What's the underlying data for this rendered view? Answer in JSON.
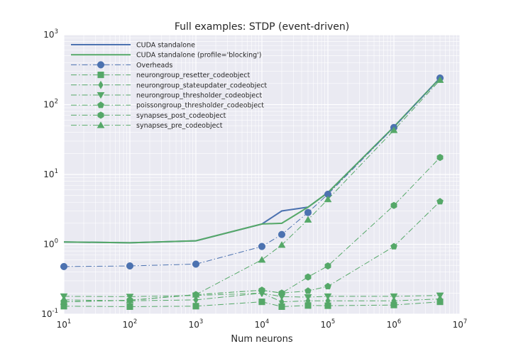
{
  "chart_data": {
    "type": "line",
    "title": "Full examples: STDP (event-driven)",
    "xlabel": "Num neurons",
    "ylabel": "",
    "xscale": "log",
    "yscale": "log",
    "xlim": [
      10,
      10000000
    ],
    "ylim": [
      0.1,
      1000
    ],
    "grid": true,
    "legend_position": "top-left",
    "x_ticks": [
      {
        "base": "10",
        "exp": "1"
      },
      {
        "base": "10",
        "exp": "2"
      },
      {
        "base": "10",
        "exp": "3"
      },
      {
        "base": "10",
        "exp": "4"
      },
      {
        "base": "10",
        "exp": "5"
      },
      {
        "base": "10",
        "exp": "6"
      },
      {
        "base": "10",
        "exp": "7"
      }
    ],
    "y_ticks": [
      {
        "base": "10",
        "exp": "-1"
      },
      {
        "base": "10",
        "exp": "0"
      },
      {
        "base": "10",
        "exp": "1"
      },
      {
        "base": "10",
        "exp": "2"
      },
      {
        "base": "10",
        "exp": "3"
      }
    ],
    "series": [
      {
        "name": "CUDA standalone",
        "color": "#4c72b0",
        "style": "solid",
        "marker": "none",
        "x": [
          10,
          100,
          1000,
          10000,
          20000,
          50000,
          100000,
          1000000,
          5000000
        ],
        "values": [
          1.08,
          1.05,
          1.12,
          1.95,
          3.0,
          3.4,
          5.5,
          48,
          240
        ]
      },
      {
        "name": "CUDA standalone (profile='blocking')",
        "color": "#55a868",
        "style": "solid",
        "marker": "none",
        "x": [
          10,
          100,
          1000,
          10000,
          20000,
          50000,
          100000,
          1000000,
          5000000
        ],
        "values": [
          1.08,
          1.05,
          1.12,
          1.95,
          2.0,
          3.4,
          5.5,
          48,
          240
        ]
      },
      {
        "name": "Overheads",
        "color": "#4c72b0",
        "style": "dashdot",
        "marker": "circle",
        "x": [
          10,
          100,
          1000,
          10000,
          20000,
          50000,
          100000,
          1000000,
          5000000
        ],
        "values": [
          0.48,
          0.49,
          0.52,
          0.93,
          1.38,
          2.85,
          5.2,
          47,
          240
        ]
      },
      {
        "name": "neurongroup_resetter_codeobject",
        "color": "#55a868",
        "style": "dashdot",
        "marker": "square",
        "x": [
          10,
          100,
          1000,
          10000,
          20000,
          50000,
          100000,
          1000000,
          5000000
        ],
        "values": [
          0.13,
          0.128,
          0.13,
          0.15,
          0.128,
          0.133,
          0.132,
          0.135,
          0.15
        ]
      },
      {
        "name": "neurongroup_stateupdater_codeobject",
        "color": "#55a868",
        "style": "dashdot",
        "marker": "thin_diamond",
        "x": [
          10,
          100,
          1000,
          10000,
          20000,
          50000,
          100000,
          1000000,
          5000000
        ],
        "values": [
          0.16,
          0.155,
          0.16,
          0.2,
          0.15,
          0.155,
          0.155,
          0.155,
          0.165
        ]
      },
      {
        "name": "neurongroup_thresholder_codeobject",
        "color": "#55a868",
        "style": "dashdot",
        "marker": "triangle_down",
        "x": [
          10,
          100,
          1000,
          10000,
          20000,
          50000,
          100000,
          1000000,
          5000000
        ],
        "values": [
          0.18,
          0.178,
          0.185,
          0.2,
          0.178,
          0.175,
          0.18,
          0.18,
          0.185
        ]
      },
      {
        "name": "poissongroup_thresholder_codeobject",
        "color": "#55a868",
        "style": "dashdot",
        "marker": "pentagon",
        "x": [
          10,
          100,
          1000,
          10000,
          20000,
          50000,
          100000,
          1000000,
          5000000
        ],
        "values": [
          0.15,
          0.158,
          0.19,
          0.22,
          0.2,
          0.215,
          0.25,
          0.93,
          4.1
        ]
      },
      {
        "name": "synapses_post_codeobject",
        "color": "#55a868",
        "style": "dashdot",
        "marker": "hexagon",
        "x": [
          10,
          100,
          1000,
          10000,
          20000,
          50000,
          100000,
          1000000,
          5000000
        ],
        "values": [
          0.15,
          0.158,
          0.19,
          0.22,
          0.2,
          0.34,
          0.49,
          3.6,
          17.5
        ]
      },
      {
        "name": "synapses_pre_codeobject",
        "color": "#55a868",
        "style": "dashdot",
        "marker": "triangle_up",
        "x": [
          10,
          100,
          1000,
          10000,
          20000,
          50000,
          100000,
          1000000,
          5000000
        ],
        "values": [
          0.15,
          0.158,
          0.19,
          0.6,
          0.98,
          2.25,
          4.4,
          43,
          225
        ]
      }
    ]
  }
}
